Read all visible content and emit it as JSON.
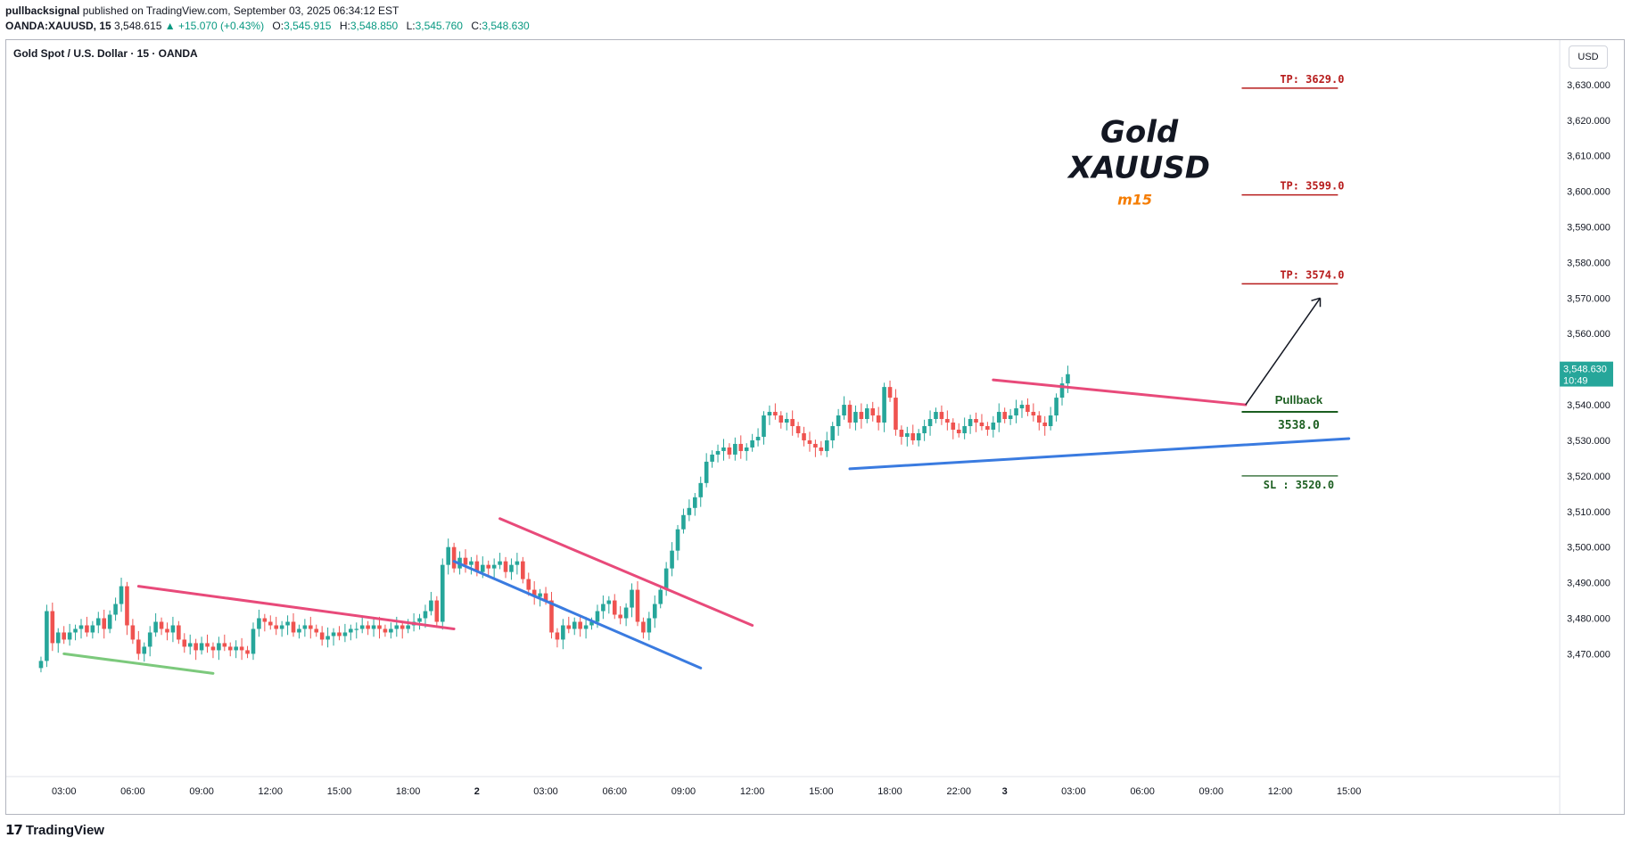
{
  "header": {
    "publisher": "pullbacksignal",
    "published_text": "published on TradingView.com, September 03, 2025 06:34:12 EST",
    "symbol": "OANDA:XAUUSD, 15",
    "last_price": "3,548.615",
    "change": "+15.070 (+0.43%)",
    "open_label": "O:",
    "open": "3,545.915",
    "high_label": "H:",
    "high": "3,548.850",
    "low_label": "L:",
    "low": "3,545.760",
    "close_label": "C:",
    "close": "3,548.630"
  },
  "chart_title": "Gold Spot / U.S. Dollar · 15 · OANDA",
  "currency": "USD",
  "price_label": {
    "price": "3,548.630",
    "countdown": "10:49"
  },
  "footer": {
    "brand": "TradingView",
    "logo_icon": "tv-logo-icon"
  },
  "annotations": {
    "title_line1": "Gold",
    "title_line2": "XAUUSD",
    "timeframe": "m15",
    "tp3": "TP: 3629.0",
    "tp2": "TP: 3599.0",
    "tp1": "TP: 3574.0",
    "pullback": "Pullback",
    "entry": "3538.0",
    "sl": "SL : 3520.0"
  },
  "colors": {
    "up": "#26a69a",
    "down": "#ef5350",
    "resistance": "#e84a7a",
    "support": "#3a7be0",
    "base_support": "#7cc97c",
    "tp": "#b71c1c",
    "entry": "#1b5e20",
    "timeframe": "#f57c00"
  },
  "chart_data": {
    "type": "candlestick",
    "title": "Gold Spot / U.S. Dollar · 15 · OANDA",
    "y_axis": {
      "min": 3463,
      "max": 3640,
      "ticks": [
        3470,
        3480,
        3490,
        3500,
        3510,
        3520,
        3530,
        3540,
        3550,
        3560,
        3570,
        3580,
        3590,
        3600,
        3610,
        3620,
        3630
      ],
      "tick_labels": [
        "3,470.000",
        "3,480.000",
        "3,490.000",
        "3,500.000",
        "3,510.000",
        "3,520.000",
        "3,530.000",
        "3,540.000",
        "",
        "3,560.000",
        "3,570.000",
        "3,580.000",
        "3,590.000",
        "3,600.000",
        "3,610.000",
        "3,620.000",
        "3,630.000"
      ]
    },
    "x_axis": {
      "labels": [
        "03:00",
        "06:00",
        "09:00",
        "12:00",
        "15:00",
        "18:00",
        "2",
        "03:00",
        "06:00",
        "09:00",
        "12:00",
        "15:00",
        "18:00",
        "22:00",
        "3",
        "03:00",
        "06:00",
        "09:00",
        "12:00",
        "15:00"
      ],
      "label_bar_index": [
        4,
        16,
        28,
        40,
        52,
        64,
        76,
        88,
        100,
        112,
        124,
        136,
        148,
        160,
        168,
        180,
        192,
        204,
        216,
        228
      ]
    },
    "closes": [
      3468,
      3482,
      3473,
      3476,
      3474,
      3476,
      3477,
      3478,
      3476,
      3478,
      3480,
      3477,
      3481,
      3484,
      3489,
      3478,
      3474,
      3470,
      3472,
      3476,
      3479,
      3477,
      3476,
      3478,
      3474,
      3472,
      3473,
      3471,
      3473,
      3472,
      3471,
      3473,
      3472,
      3471,
      3472,
      3471,
      3470,
      3477,
      3480,
      3479,
      3478,
      3477,
      3478,
      3479,
      3476,
      3477,
      3478,
      3477,
      3476,
      3474,
      3475,
      3476,
      3475,
      3476,
      3477,
      3477,
      3478,
      3477,
      3478,
      3477,
      3476,
      3477,
      3478,
      3477,
      3478,
      3479,
      3480,
      3482,
      3485,
      3479,
      3495,
      3500,
      3494,
      3497,
      3495,
      3496,
      3493,
      3495,
      3494,
      3495,
      3496,
      3493,
      3495,
      3496,
      3491,
      3488,
      3486,
      3487,
      3485,
      3476,
      3474,
      3478,
      3477,
      3479,
      3477,
      3478,
      3479,
      3482,
      3484,
      3485,
      3481,
      3480,
      3483,
      3488,
      3479,
      3476,
      3480,
      3484,
      3488,
      3494,
      3499,
      3505,
      3509,
      3511,
      3514,
      3518,
      3524,
      3526,
      3527,
      3528,
      3526,
      3529,
      3527,
      3528,
      3530,
      3531,
      3537,
      3538,
      3537,
      3535,
      3536,
      3534,
      3532,
      3530,
      3529,
      3528,
      3527,
      3530,
      3534,
      3537,
      3540,
      3535,
      3538,
      3536,
      3539,
      3537,
      3535,
      3545,
      3542,
      3533,
      3531,
      3532,
      3530,
      3532,
      3534,
      3536,
      3538,
      3536,
      3535,
      3533,
      3532,
      3534,
      3536,
      3535,
      3534,
      3533,
      3535,
      3538,
      3536,
      3537,
      3539,
      3540,
      3538,
      3537,
      3535,
      3534,
      3537,
      3542,
      3546,
      3548.6
    ],
    "levels": {
      "tp3": 3629,
      "tp2": 3599,
      "tp1": 3574,
      "entry": 3538,
      "sl": 3520,
      "last": 3548.63
    }
  }
}
